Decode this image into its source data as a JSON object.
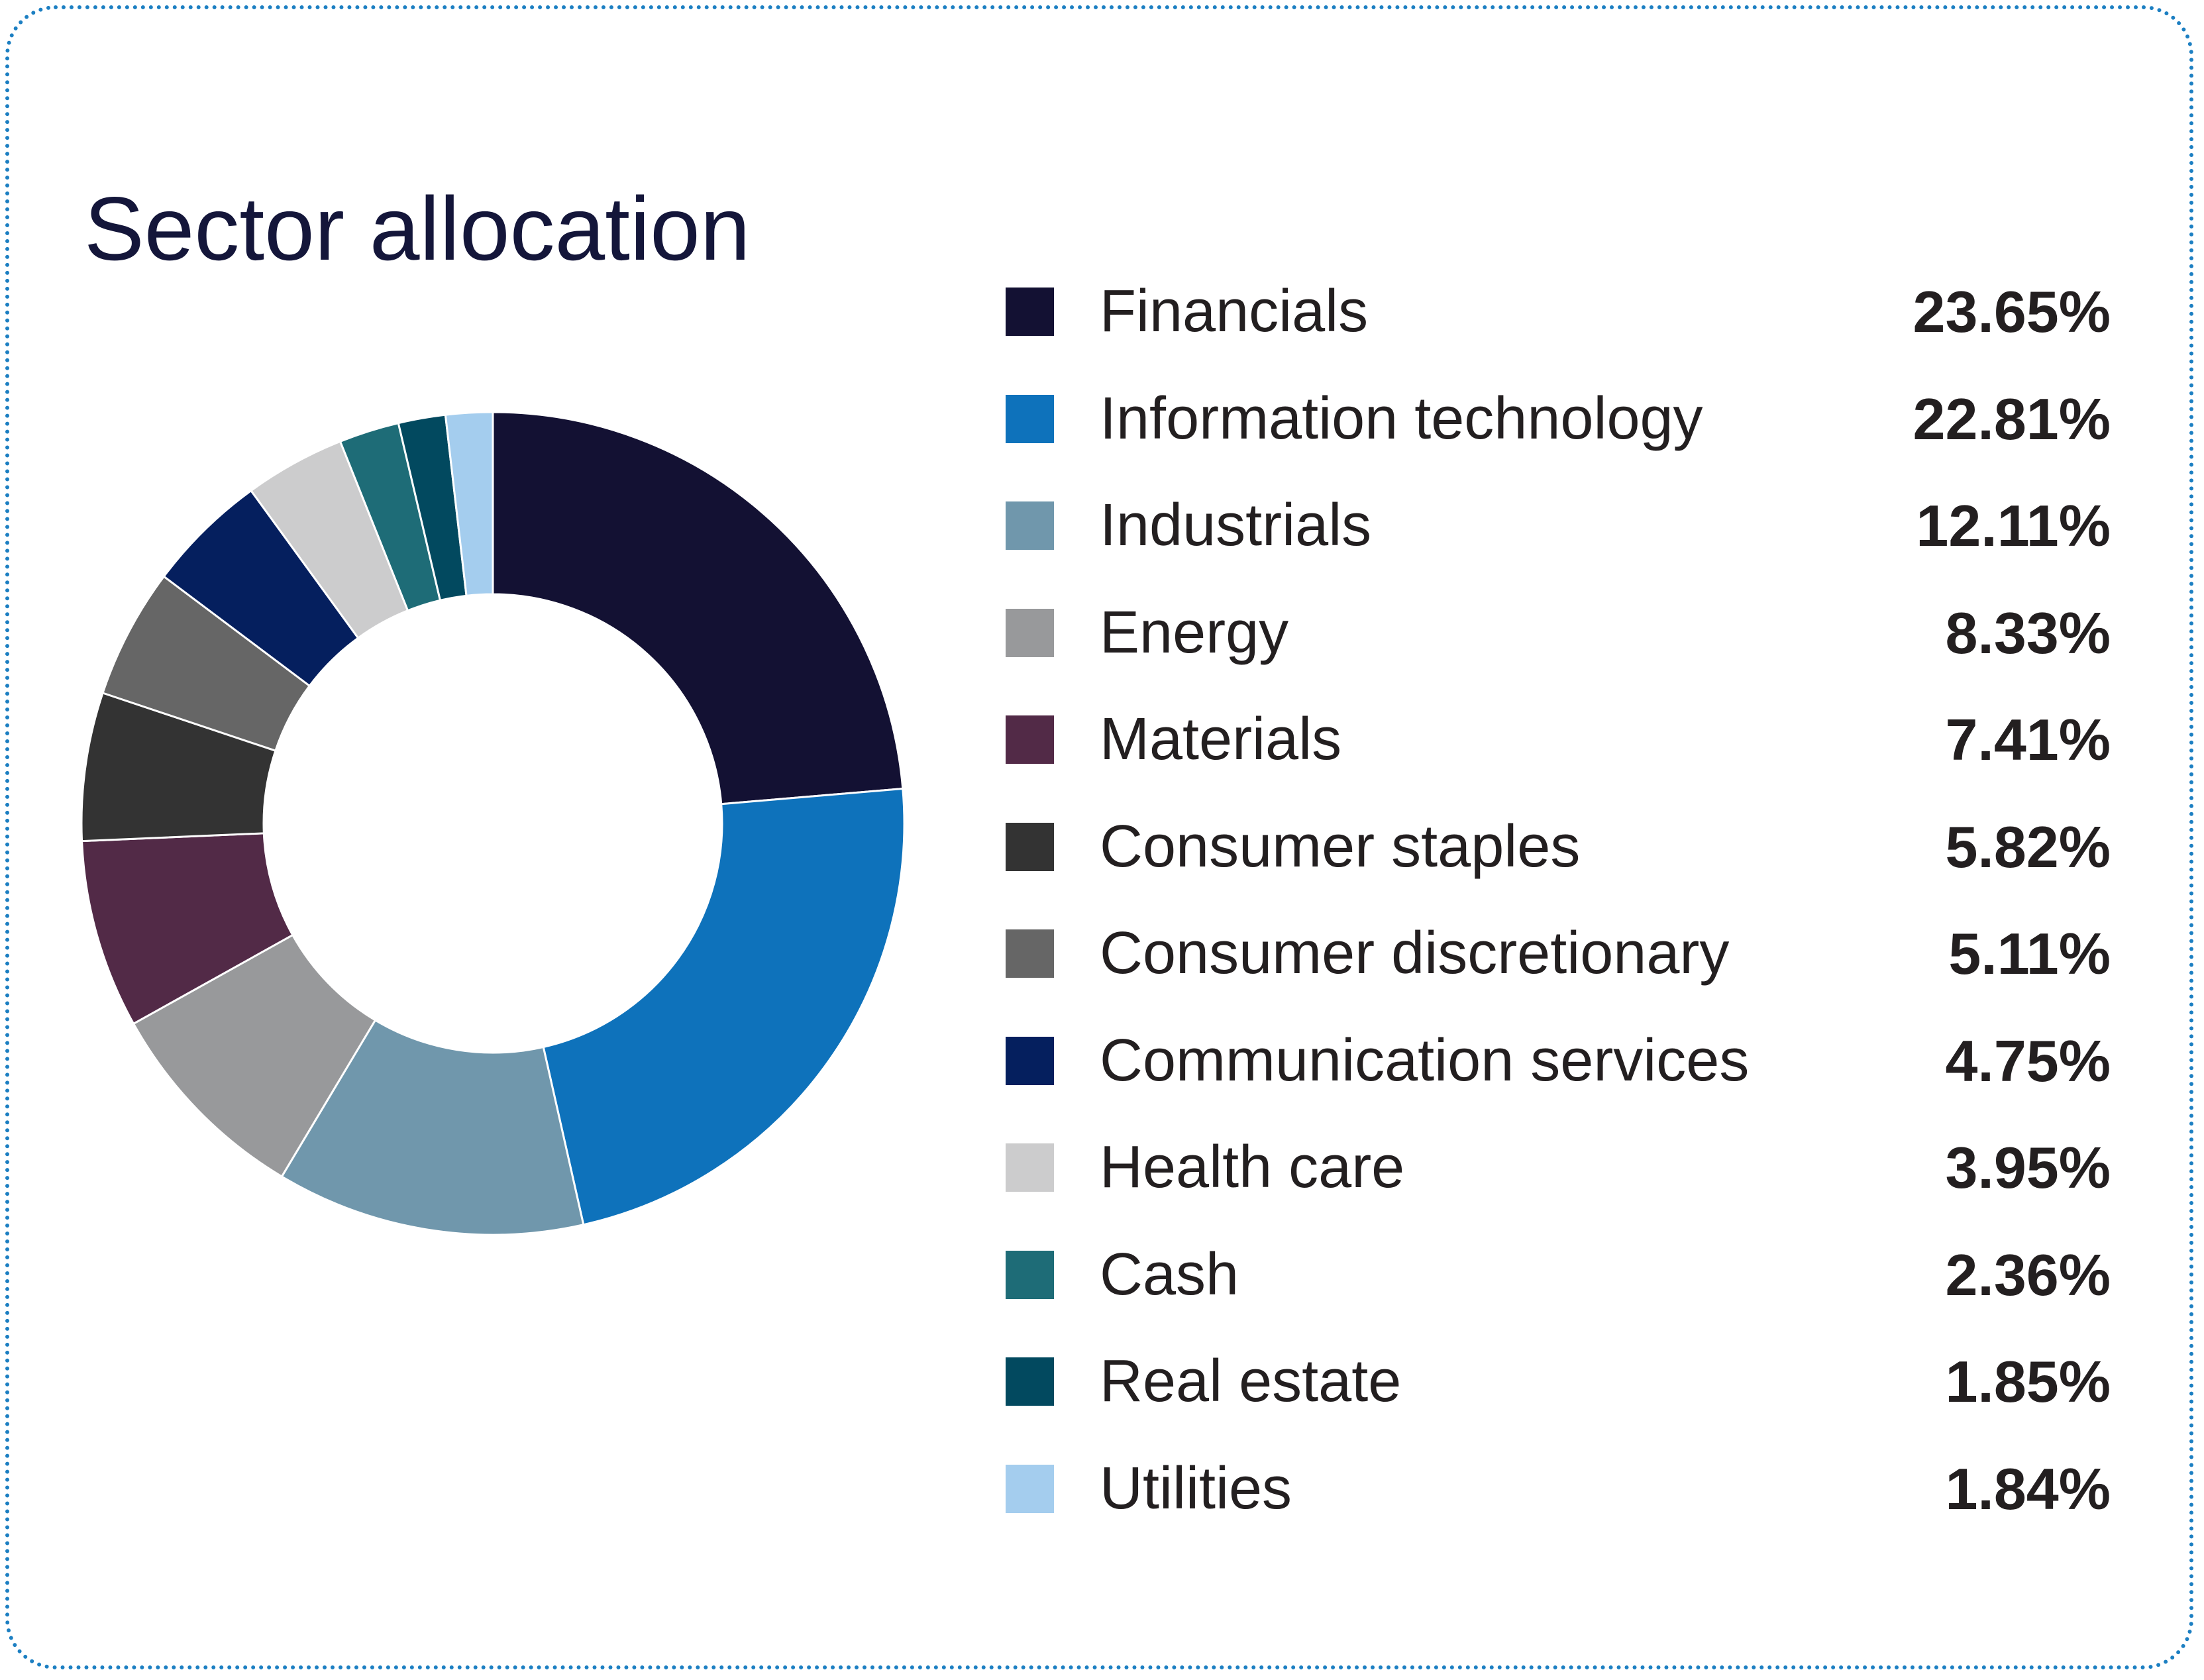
{
  "chart_data": {
    "type": "pie",
    "title": "Sector allocation",
    "legend_position": "right",
    "categories": [
      "Financials",
      "Information technology",
      "Industrials",
      "Energy",
      "Materials",
      "Consumer staples",
      "Consumer discretionary",
      "Communication services",
      "Health care",
      "Cash",
      "Real estate",
      "Utilities"
    ],
    "values": [
      23.65,
      22.81,
      12.11,
      8.33,
      7.41,
      5.82,
      5.11,
      4.75,
      3.95,
      2.36,
      1.85,
      1.84
    ],
    "value_labels": [
      "23.65%",
      "22.81%",
      "12.11%",
      "8.33%",
      "7.41%",
      "5.82%",
      "5.11%",
      "4.75%",
      "3.95%",
      "2.36%",
      "1.85%",
      "1.84%"
    ],
    "colors": [
      "#131133",
      "#0e72bb",
      "#7097ac",
      "#98999b",
      "#522a47",
      "#333333",
      "#666666",
      "#051f5e",
      "#cccccd",
      "#1e6c77",
      "#02495f",
      "#a4cdee"
    ]
  },
  "card_border_color": "#1c7fc2"
}
